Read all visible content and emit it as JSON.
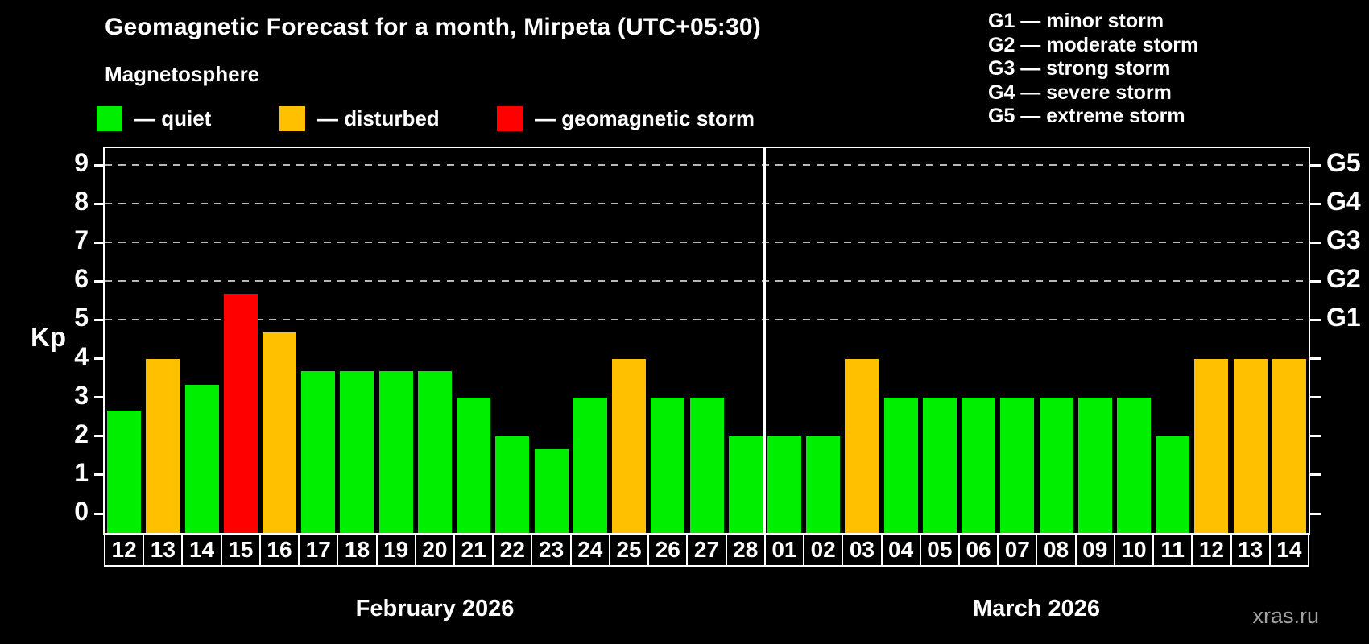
{
  "header": {
    "title": "Geomagnetic Forecast for a month, Mirpeta (UTC+05:30)",
    "subtitle": "Magnetosphere"
  },
  "legend": {
    "items": [
      {
        "key": "quiet",
        "label": "— quiet",
        "color": "#00ef00"
      },
      {
        "key": "disturbed",
        "label": "— disturbed",
        "color": "#ffc000"
      },
      {
        "key": "storm",
        "label": "— geomagnetic storm",
        "color": "#ff0000"
      }
    ]
  },
  "g_scale_legend": {
    "lines": [
      "G1 — minor storm",
      "G2 — moderate storm",
      "G3 — strong storm",
      "G4 — severe storm",
      "G5 — extreme storm"
    ]
  },
  "watermark": "xras.ru",
  "chart_data": {
    "type": "bar",
    "ylabel": "Kp",
    "ylim": [
      0,
      9
    ],
    "yticks": [
      "0",
      "1",
      "2",
      "3",
      "4",
      "5",
      "6",
      "7",
      "8",
      "9"
    ],
    "gridlines_kp": [
      5,
      6,
      7,
      8,
      9
    ],
    "grid_style": "dashed",
    "right_axis_labels": [
      {
        "label": "G5",
        "kp": 9
      },
      {
        "label": "G4",
        "kp": 8
      },
      {
        "label": "G3",
        "kp": 7
      },
      {
        "label": "G2",
        "kp": 6
      },
      {
        "label": "G1",
        "kp": 5
      }
    ],
    "color_map": {
      "quiet": "#00ef00",
      "disturbed": "#ffc000",
      "storm": "#ff0000"
    },
    "months": [
      {
        "label": "February 2026",
        "days": [
          {
            "day": "12",
            "kp": 2.67,
            "status": "quiet"
          },
          {
            "day": "13",
            "kp": 4.0,
            "status": "disturbed"
          },
          {
            "day": "14",
            "kp": 3.33,
            "status": "quiet"
          },
          {
            "day": "15",
            "kp": 5.67,
            "status": "storm"
          },
          {
            "day": "16",
            "kp": 4.67,
            "status": "disturbed"
          },
          {
            "day": "17",
            "kp": 3.67,
            "status": "quiet"
          },
          {
            "day": "18",
            "kp": 3.67,
            "status": "quiet"
          },
          {
            "day": "19",
            "kp": 3.67,
            "status": "quiet"
          },
          {
            "day": "20",
            "kp": 3.67,
            "status": "quiet"
          },
          {
            "day": "21",
            "kp": 3.0,
            "status": "quiet"
          },
          {
            "day": "22",
            "kp": 2.0,
            "status": "quiet"
          },
          {
            "day": "23",
            "kp": 1.67,
            "status": "quiet"
          },
          {
            "day": "24",
            "kp": 3.0,
            "status": "quiet"
          },
          {
            "day": "25",
            "kp": 4.0,
            "status": "disturbed"
          },
          {
            "day": "26",
            "kp": 3.0,
            "status": "quiet"
          },
          {
            "day": "27",
            "kp": 3.0,
            "status": "quiet"
          },
          {
            "day": "28",
            "kp": 2.0,
            "status": "quiet"
          }
        ]
      },
      {
        "label": "March 2026",
        "days": [
          {
            "day": "01",
            "kp": 2.0,
            "status": "quiet"
          },
          {
            "day": "02",
            "kp": 2.0,
            "status": "quiet"
          },
          {
            "day": "03",
            "kp": 4.0,
            "status": "disturbed"
          },
          {
            "day": "04",
            "kp": 3.0,
            "status": "quiet"
          },
          {
            "day": "05",
            "kp": 3.0,
            "status": "quiet"
          },
          {
            "day": "06",
            "kp": 3.0,
            "status": "quiet"
          },
          {
            "day": "07",
            "kp": 3.0,
            "status": "quiet"
          },
          {
            "day": "08",
            "kp": 3.0,
            "status": "quiet"
          },
          {
            "day": "09",
            "kp": 3.0,
            "status": "quiet"
          },
          {
            "day": "10",
            "kp": 3.0,
            "status": "quiet"
          },
          {
            "day": "11",
            "kp": 2.0,
            "status": "quiet"
          },
          {
            "day": "12",
            "kp": 4.0,
            "status": "disturbed"
          },
          {
            "day": "13",
            "kp": 4.0,
            "status": "disturbed"
          },
          {
            "day": "14",
            "kp": 4.0,
            "status": "disturbed"
          }
        ]
      }
    ]
  }
}
